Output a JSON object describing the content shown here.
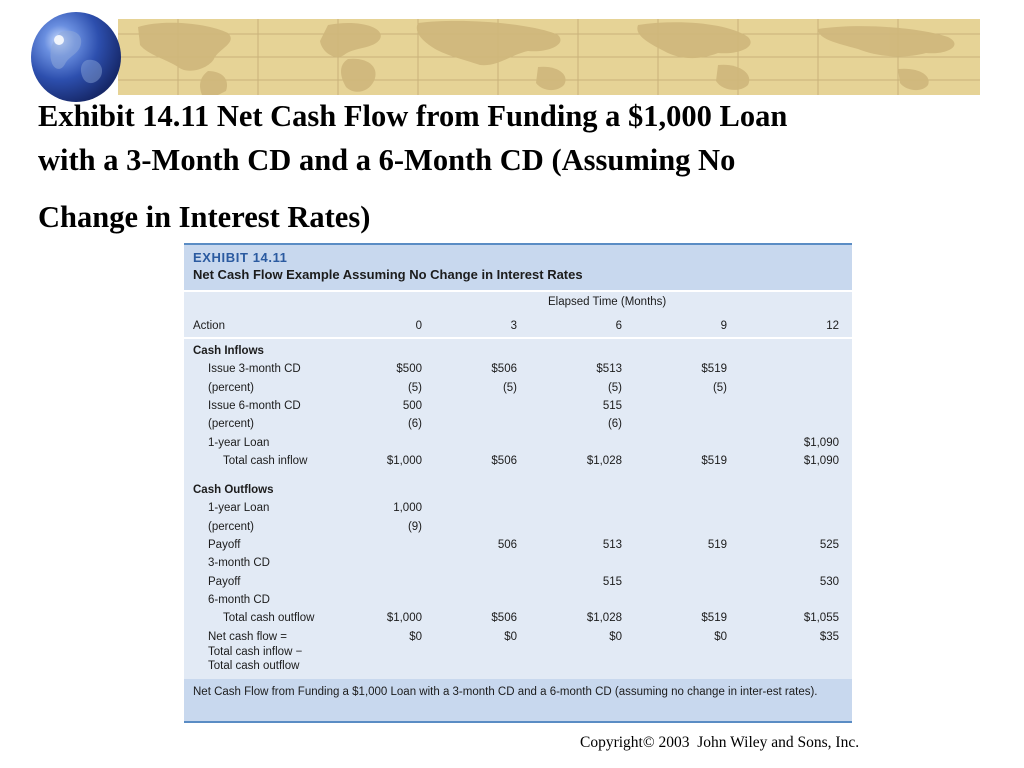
{
  "slide": {
    "title_lines": [
      "Exhibit 14.11 Net Cash Flow from Funding a $1,000 Loan",
      "with a 3-Month CD and a 6-Month CD (Assuming No",
      "Change in Interest Rates)"
    ],
    "copyright": "Copyright© 2003  John Wiley and Sons, Inc.",
    "banner_icon": "world-map-icon",
    "globe_icon": "globe-icon"
  },
  "exhibit": {
    "label": "EXHIBIT 14.11",
    "subtitle": "Net Cash Flow Example Assuming No Change in Interest Rates",
    "elapsed_header": "Elapsed Time (Months)",
    "columns": [
      "Action",
      "0",
      "3",
      "6",
      "9",
      "12"
    ],
    "sections": [
      {
        "heading": "Cash Inflows",
        "rows": [
          {
            "label": "Issue 3-month CD",
            "values": [
              "$500",
              "$506",
              "$513",
              "$519",
              ""
            ]
          },
          {
            "label": "(percent)",
            "values": [
              "(5)",
              "(5)",
              "(5)",
              "(5)",
              ""
            ]
          },
          {
            "label": "Issue 6-month CD",
            "values": [
              "500",
              "",
              "515",
              "",
              ""
            ]
          },
          {
            "label": "(percent)",
            "values": [
              "(6)",
              "",
              "(6)",
              "",
              ""
            ]
          },
          {
            "label": "1-year Loan",
            "values": [
              "",
              "",
              "",
              "",
              "$1,090"
            ]
          },
          {
            "label": "Total cash inflow",
            "values": [
              "$1,000",
              "$506",
              "$1,028",
              "$519",
              "$1,090"
            ]
          }
        ]
      },
      {
        "heading": "Cash Outflows",
        "rows": [
          {
            "label": "1-year Loan",
            "values": [
              "1,000",
              "",
              "",
              "",
              ""
            ]
          },
          {
            "label": "(percent)",
            "values": [
              "(9)",
              "",
              "",
              "",
              ""
            ]
          },
          {
            "label": "Payoff",
            "values": [
              "",
              "506",
              "513",
              "519",
              "525"
            ]
          },
          {
            "label": "3-month CD",
            "values": [
              "",
              "",
              "",
              "",
              ""
            ]
          },
          {
            "label": "Payoff",
            "values": [
              "",
              "",
              "515",
              "",
              "530"
            ]
          },
          {
            "label": "6-month CD",
            "values": [
              "",
              "",
              "",
              "",
              ""
            ]
          },
          {
            "label": "Total cash outflow",
            "values": [
              "$1,000",
              "$506",
              "$1,028",
              "$519",
              "$1,055"
            ]
          },
          {
            "label": "Net cash flow =",
            "values": [
              "$0",
              "$0",
              "$0",
              "$0",
              "$35"
            ]
          }
        ]
      }
    ],
    "net_note_lines": [
      "Total cash inflow −",
      "Total cash outflow"
    ],
    "caption": "Net Cash Flow from Funding a $1,000 Loan with a 3-month CD and a 6-month CD (assuming no change in inter-est rates).",
    "colors": {
      "header_bg": "#c8d8ee",
      "body_bg": "#e2eaf5",
      "accent": "#2a5aa0"
    }
  }
}
